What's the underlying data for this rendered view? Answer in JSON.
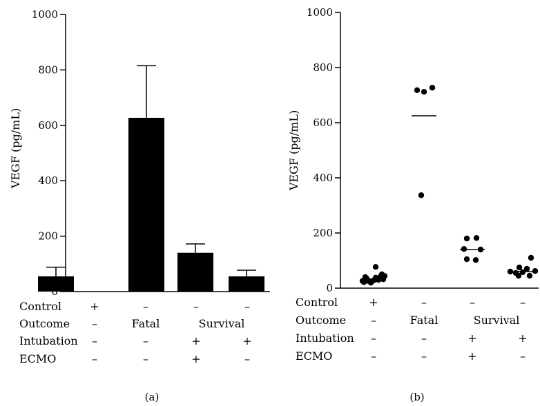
{
  "chart_data": [
    {
      "type": "bar",
      "panel_label": "(a)",
      "ylabel": "VEGF (pg/mL)",
      "ylim": [
        0,
        1000
      ],
      "yticks": [
        "0",
        "200",
        "400",
        "600",
        "800",
        "1000"
      ],
      "groups": 4,
      "values": [
        55,
        627,
        140,
        55
      ],
      "error_upper": [
        88,
        815,
        172,
        77
      ],
      "grid": false
    },
    {
      "type": "scatter",
      "panel_label": "(b)",
      "ylabel": "VEGF (pg/mL)",
      "ylim": [
        0,
        1000
      ],
      "yticks": [
        "0",
        "200",
        "400",
        "600",
        "800",
        "1000"
      ],
      "groups": 4,
      "means": [
        33,
        625,
        140,
        60
      ],
      "points": [
        [
          22,
          25,
          28,
          30,
          32,
          35,
          38,
          42,
          50,
          77,
          20,
          26,
          40,
          44
        ],
        [
          718,
          712,
          727,
          337
        ],
        [
          180,
          182,
          142,
          140,
          105,
          102
        ],
        [
          110,
          75,
          70,
          62,
          60,
          58,
          55,
          45,
          45
        ]
      ],
      "grid": false
    }
  ],
  "table": {
    "rows": [
      {
        "label": "Control",
        "cells": [
          "+",
          "–",
          "–",
          "–"
        ]
      },
      {
        "label": "Outcome",
        "cells": [
          "–",
          "Fatal",
          "Survival"
        ]
      },
      {
        "label": "Intubation",
        "cells": [
          "–",
          "–",
          "+",
          "+"
        ]
      },
      {
        "label": "ECMO",
        "cells": [
          "–",
          "–",
          "+",
          "–"
        ]
      }
    ]
  }
}
